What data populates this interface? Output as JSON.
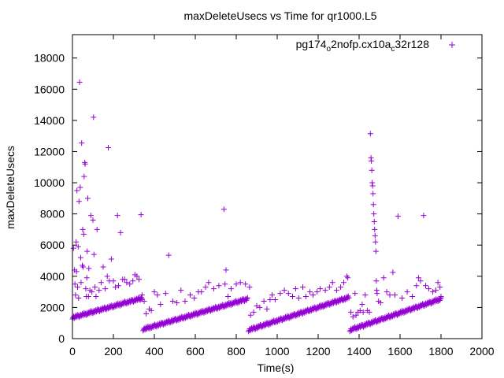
{
  "chart_data": {
    "type": "scatter",
    "title": "maxDeleteUsecs vs Time for qr1000.L5",
    "xlabel": "Time(s)",
    "ylabel": "maxDeleteUsecs",
    "xlim": [
      0,
      2000
    ],
    "ylim": [
      0,
      19500
    ],
    "xticks": [
      0,
      200,
      400,
      600,
      800,
      1000,
      1200,
      1400,
      1600,
      1800,
      2000
    ],
    "yticks": [
      0,
      2000,
      4000,
      6000,
      8000,
      10000,
      12000,
      14000,
      16000,
      18000
    ],
    "grid": false,
    "legend_position": "top-right",
    "marker": "plus",
    "color": "#9400d3",
    "series": [
      {
        "legend_parts": [
          {
            "text": "pg174",
            "sub": false
          },
          {
            "text": "o",
            "sub": true
          },
          {
            "text": "2nofp.cx10a",
            "sub": false
          },
          {
            "text": "c",
            "sub": true
          },
          {
            "text": "32r128",
            "sub": false
          }
        ],
        "baseline_segments": [
          {
            "x0": 0,
            "x1": 340,
            "y0": 1350,
            "y1": 2600
          },
          {
            "x0": 345,
            "x1": 855,
            "y0": 600,
            "y1": 2550
          },
          {
            "x0": 860,
            "x1": 1350,
            "y0": 550,
            "y1": 2650
          },
          {
            "x0": 1355,
            "x1": 1800,
            "y0": 550,
            "y1": 2550
          }
        ],
        "outliers": [
          [
            5,
            5800
          ],
          [
            10,
            4400
          ],
          [
            12,
            3500
          ],
          [
            15,
            2800
          ],
          [
            18,
            6200
          ],
          [
            20,
            4300
          ],
          [
            22,
            9500
          ],
          [
            25,
            3300
          ],
          [
            28,
            5900
          ],
          [
            30,
            2600
          ],
          [
            32,
            8800
          ],
          [
            35,
            16450
          ],
          [
            38,
            9700
          ],
          [
            40,
            5200
          ],
          [
            42,
            3600
          ],
          [
            45,
            12550
          ],
          [
            48,
            4700
          ],
          [
            50,
            7000
          ],
          [
            52,
            4600
          ],
          [
            55,
            6700
          ],
          [
            57,
            10400
          ],
          [
            60,
            11300
          ],
          [
            62,
            11200
          ],
          [
            65,
            3200
          ],
          [
            68,
            2700
          ],
          [
            70,
            3900
          ],
          [
            72,
            5600
          ],
          [
            75,
            9000
          ],
          [
            78,
            2700
          ],
          [
            80,
            4500
          ],
          [
            85,
            3100
          ],
          [
            90,
            7900
          ],
          [
            95,
            3000
          ],
          [
            100,
            7600
          ],
          [
            103,
            14200
          ],
          [
            105,
            5400
          ],
          [
            110,
            3300
          ],
          [
            115,
            2700
          ],
          [
            120,
            7000
          ],
          [
            130,
            3100
          ],
          [
            140,
            3600
          ],
          [
            150,
            4600
          ],
          [
            160,
            3200
          ],
          [
            170,
            4000
          ],
          [
            175,
            12250
          ],
          [
            180,
            3700
          ],
          [
            190,
            5100
          ],
          [
            200,
            3700
          ],
          [
            210,
            3300
          ],
          [
            220,
            7900
          ],
          [
            225,
            3400
          ],
          [
            235,
            6800
          ],
          [
            245,
            3800
          ],
          [
            255,
            3800
          ],
          [
            265,
            3600
          ],
          [
            280,
            3500
          ],
          [
            295,
            3700
          ],
          [
            305,
            4100
          ],
          [
            315,
            4000
          ],
          [
            325,
            3800
          ],
          [
            335,
            7950
          ],
          [
            340,
            2800
          ],
          [
            350,
            2400
          ],
          [
            360,
            1600
          ],
          [
            375,
            1900
          ],
          [
            385,
            1800
          ],
          [
            400,
            3000
          ],
          [
            415,
            2800
          ],
          [
            430,
            2200
          ],
          [
            455,
            2900
          ],
          [
            470,
            5350
          ],
          [
            490,
            2400
          ],
          [
            510,
            2300
          ],
          [
            530,
            3100
          ],
          [
            550,
            2400
          ],
          [
            575,
            2800
          ],
          [
            595,
            2600
          ],
          [
            615,
            3000
          ],
          [
            630,
            3000
          ],
          [
            650,
            3300
          ],
          [
            665,
            3600
          ],
          [
            690,
            3200
          ],
          [
            715,
            3400
          ],
          [
            740,
            8300
          ],
          [
            745,
            3500
          ],
          [
            750,
            4400
          ],
          [
            760,
            2700
          ],
          [
            775,
            3200
          ],
          [
            800,
            3500
          ],
          [
            820,
            3600
          ],
          [
            845,
            3500
          ],
          [
            865,
            3300
          ],
          [
            870,
            1500
          ],
          [
            885,
            1700
          ],
          [
            900,
            2100
          ],
          [
            915,
            2000
          ],
          [
            935,
            2400
          ],
          [
            950,
            1900
          ],
          [
            965,
            2500
          ],
          [
            975,
            2800
          ],
          [
            990,
            2500
          ],
          [
            1015,
            2900
          ],
          [
            1035,
            3100
          ],
          [
            1055,
            2900
          ],
          [
            1075,
            2700
          ],
          [
            1090,
            3200
          ],
          [
            1105,
            2600
          ],
          [
            1125,
            3300
          ],
          [
            1140,
            2700
          ],
          [
            1160,
            3000
          ],
          [
            1175,
            2800
          ],
          [
            1195,
            3000
          ],
          [
            1210,
            3200
          ],
          [
            1235,
            3100
          ],
          [
            1255,
            3300
          ],
          [
            1270,
            3600
          ],
          [
            1290,
            3100
          ],
          [
            1310,
            3300
          ],
          [
            1325,
            3600
          ],
          [
            1340,
            4000
          ],
          [
            1345,
            3900
          ],
          [
            1360,
            1700
          ],
          [
            1370,
            1400
          ],
          [
            1380,
            2900
          ],
          [
            1385,
            1500
          ],
          [
            1395,
            1700
          ],
          [
            1405,
            1800
          ],
          [
            1415,
            2200
          ],
          [
            1420,
            1700
          ],
          [
            1430,
            2800
          ],
          [
            1440,
            1800
          ],
          [
            1450,
            1700
          ],
          [
            1455,
            13150
          ],
          [
            1458,
            11600
          ],
          [
            1460,
            11400
          ],
          [
            1462,
            10800
          ],
          [
            1464,
            10000
          ],
          [
            1466,
            9800
          ],
          [
            1468,
            9300
          ],
          [
            1470,
            8600
          ],
          [
            1472,
            8000
          ],
          [
            1474,
            7500
          ],
          [
            1476,
            7000
          ],
          [
            1478,
            6600
          ],
          [
            1480,
            6200
          ],
          [
            1482,
            5600
          ],
          [
            1484,
            3700
          ],
          [
            1486,
            3100
          ],
          [
            1488,
            2900
          ],
          [
            1495,
            2400
          ],
          [
            1505,
            2300
          ],
          [
            1520,
            3900
          ],
          [
            1535,
            3000
          ],
          [
            1550,
            2800
          ],
          [
            1565,
            4250
          ],
          [
            1575,
            2800
          ],
          [
            1590,
            7850
          ],
          [
            1610,
            2600
          ],
          [
            1635,
            3000
          ],
          [
            1660,
            2700
          ],
          [
            1680,
            3400
          ],
          [
            1690,
            3900
          ],
          [
            1700,
            3700
          ],
          [
            1715,
            7900
          ],
          [
            1725,
            3400
          ],
          [
            1740,
            3200
          ],
          [
            1760,
            3000
          ],
          [
            1775,
            3100
          ],
          [
            1785,
            3600
          ],
          [
            1795,
            3300
          ],
          [
            1800,
            2700
          ]
        ]
      }
    ]
  }
}
